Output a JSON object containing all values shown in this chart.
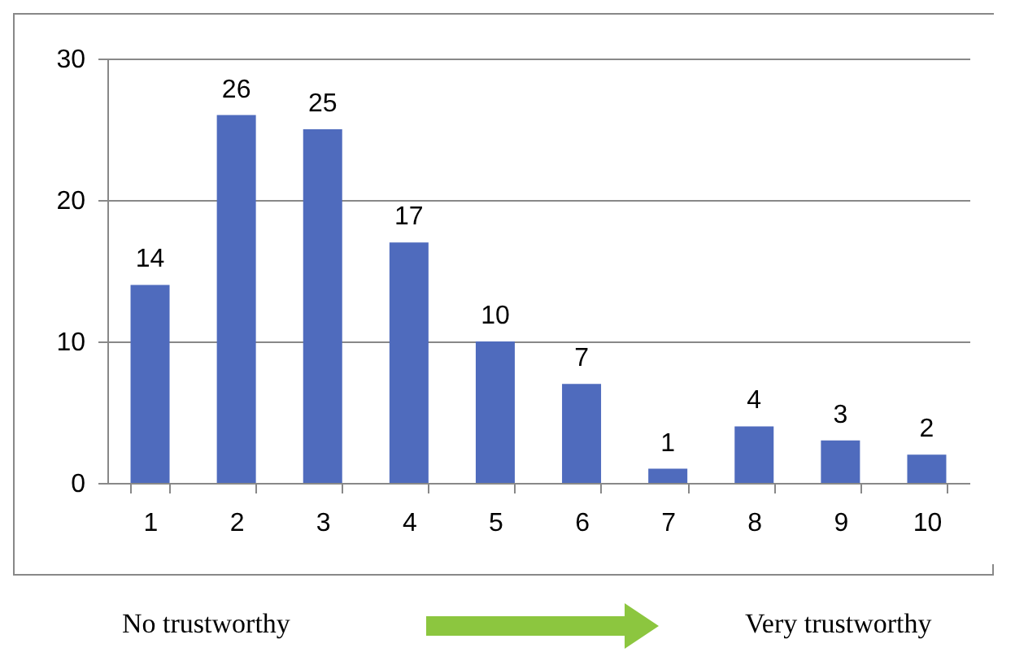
{
  "chart_data": {
    "type": "bar",
    "categories": [
      "1",
      "2",
      "3",
      "4",
      "5",
      "6",
      "7",
      "8",
      "9",
      "10"
    ],
    "values": [
      14,
      26,
      25,
      17,
      10,
      7,
      1,
      4,
      3,
      2
    ],
    "color": "#4f6bbd",
    "ylim": [
      0,
      30
    ],
    "yticks": [
      0,
      10,
      20,
      30
    ],
    "grid": "y",
    "data_labels": true,
    "annotations": [
      "No trustworthy",
      "Very trustworthy"
    ]
  }
}
